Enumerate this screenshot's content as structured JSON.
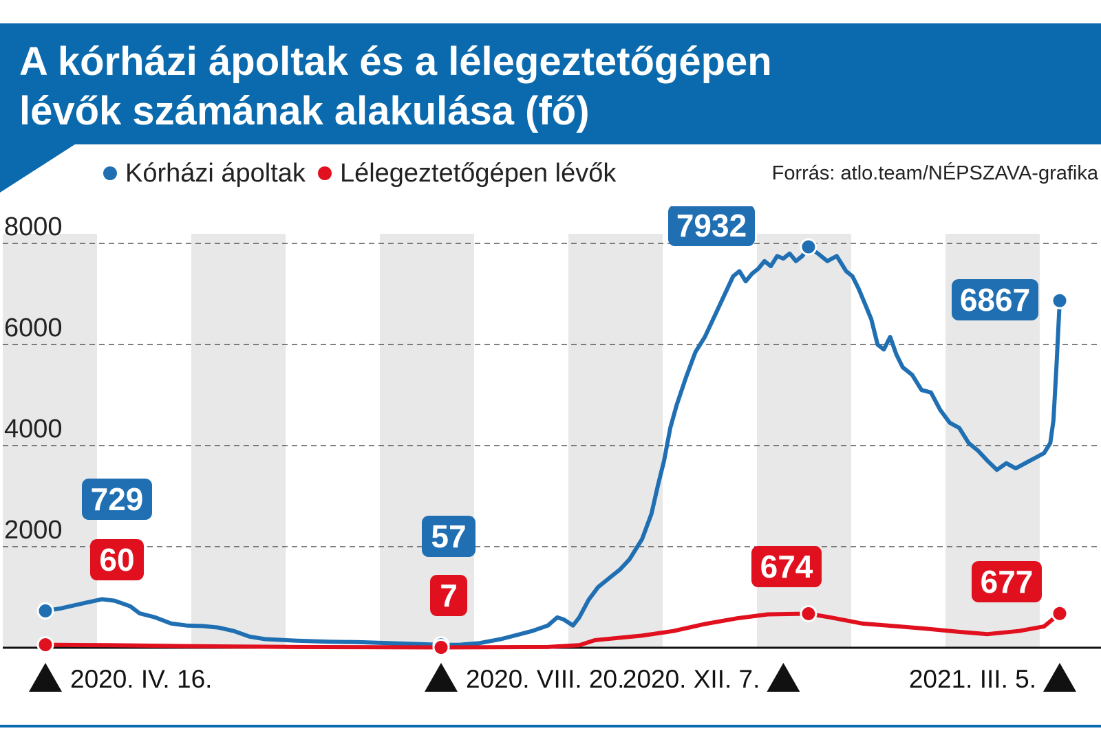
{
  "title": {
    "line1": "A kórházi ápoltak és a lélegeztetőgépen",
    "line2": "lévők számának alakulása (fő)"
  },
  "legend": [
    {
      "label": "Kórházi ápoltak",
      "color": "#1f6fb2"
    },
    {
      "label": "Lélegeztetőgépen lévők",
      "color": "#e0101e"
    }
  ],
  "source": "Forrás: atlo.team/NÉPSZAVA-grafika",
  "colors": {
    "blue": "#1f6fb2",
    "red": "#e0101e",
    "title_bg": "#0a6aad",
    "band": "#e8e8e8"
  },
  "chart_data": {
    "type": "line",
    "x_label_unit": "day index from 2020-04-16 (day 0) to 2021-03-05 (day 323)",
    "xlim": [
      0,
      323
    ],
    "ylim": [
      0,
      8000
    ],
    "yticks": [
      "8000",
      "6000",
      "4000",
      "2000"
    ],
    "ytick_values": [
      8000,
      6000,
      4000,
      2000
    ],
    "grid": "dashed horizontal",
    "legend_position": "top-left",
    "date_labels": [
      {
        "day": 0,
        "label": "2020. IV. 16.",
        "marker_side": "left"
      },
      {
        "day": 126,
        "label": "2020. VIII. 20.",
        "marker_side": "left"
      },
      {
        "day": 235,
        "label": "2020. XII. 7.",
        "marker_side": "right"
      },
      {
        "day": 323,
        "label": "2021. III. 5.",
        "marker_side": "right"
      }
    ],
    "series": [
      {
        "name": "Kórházi ápoltak",
        "color": "#1f6fb2",
        "points": [
          [
            0,
            729
          ],
          [
            5,
            780
          ],
          [
            10,
            850
          ],
          [
            15,
            920
          ],
          [
            18,
            960
          ],
          [
            22,
            930
          ],
          [
            27,
            820
          ],
          [
            30,
            680
          ],
          [
            35,
            600
          ],
          [
            40,
            480
          ],
          [
            45,
            440
          ],
          [
            50,
            430
          ],
          [
            55,
            400
          ],
          [
            60,
            330
          ],
          [
            65,
            220
          ],
          [
            70,
            170
          ],
          [
            80,
            140
          ],
          [
            90,
            120
          ],
          [
            100,
            110
          ],
          [
            110,
            90
          ],
          [
            120,
            70
          ],
          [
            126,
            57
          ],
          [
            132,
            60
          ],
          [
            138,
            90
          ],
          [
            145,
            170
          ],
          [
            150,
            250
          ],
          [
            155,
            330
          ],
          [
            160,
            440
          ],
          [
            163,
            600
          ],
          [
            165,
            560
          ],
          [
            168,
            440
          ],
          [
            170,
            600
          ],
          [
            173,
            950
          ],
          [
            176,
            1200
          ],
          [
            180,
            1400
          ],
          [
            183,
            1550
          ],
          [
            186,
            1750
          ],
          [
            190,
            2150
          ],
          [
            193,
            2650
          ],
          [
            195,
            3200
          ],
          [
            197,
            3700
          ],
          [
            199,
            4350
          ],
          [
            201,
            4800
          ],
          [
            204,
            5350
          ],
          [
            207,
            5850
          ],
          [
            210,
            6150
          ],
          [
            213,
            6550
          ],
          [
            216,
            6950
          ],
          [
            219,
            7350
          ],
          [
            221,
            7450
          ],
          [
            223,
            7250
          ],
          [
            225,
            7400
          ],
          [
            227,
            7500
          ],
          [
            229,
            7650
          ],
          [
            231,
            7550
          ],
          [
            233,
            7750
          ],
          [
            235,
            7700
          ],
          [
            237,
            7800
          ],
          [
            239,
            7650
          ],
          [
            241,
            7750
          ],
          [
            243,
            7932
          ],
          [
            246,
            7800
          ],
          [
            249,
            7650
          ],
          [
            252,
            7750
          ],
          [
            255,
            7450
          ],
          [
            257,
            7350
          ],
          [
            259,
            7100
          ],
          [
            261,
            6800
          ],
          [
            263,
            6500
          ],
          [
            265,
            6000
          ],
          [
            267,
            5900
          ],
          [
            269,
            6150
          ],
          [
            271,
            5800
          ],
          [
            273,
            5550
          ],
          [
            276,
            5400
          ],
          [
            279,
            5100
          ],
          [
            282,
            5050
          ],
          [
            285,
            4700
          ],
          [
            288,
            4450
          ],
          [
            291,
            4350
          ],
          [
            294,
            4050
          ],
          [
            297,
            3900
          ],
          [
            300,
            3700
          ],
          [
            303,
            3520
          ],
          [
            306,
            3650
          ],
          [
            309,
            3550
          ],
          [
            312,
            3650
          ],
          [
            315,
            3750
          ],
          [
            318,
            3850
          ],
          [
            320,
            4050
          ],
          [
            321,
            4500
          ],
          [
            322,
            5600
          ],
          [
            323,
            6867
          ]
        ]
      },
      {
        "name": "Lélegeztetőgépen lévők",
        "color": "#e0101e",
        "points": [
          [
            0,
            60
          ],
          [
            20,
            50
          ],
          [
            40,
            35
          ],
          [
            60,
            25
          ],
          [
            80,
            15
          ],
          [
            100,
            12
          ],
          [
            126,
            7
          ],
          [
            140,
            10
          ],
          [
            160,
            15
          ],
          [
            170,
            50
          ],
          [
            175,
            150
          ],
          [
            180,
            180
          ],
          [
            190,
            240
          ],
          [
            200,
            330
          ],
          [
            210,
            470
          ],
          [
            220,
            580
          ],
          [
            230,
            660
          ],
          [
            243,
            674
          ],
          [
            250,
            600
          ],
          [
            260,
            480
          ],
          [
            270,
            430
          ],
          [
            280,
            380
          ],
          [
            290,
            320
          ],
          [
            300,
            270
          ],
          [
            310,
            330
          ],
          [
            318,
            420
          ],
          [
            323,
            677
          ]
        ]
      }
    ],
    "callouts": [
      {
        "series": 0,
        "day": 0,
        "value": "729"
      },
      {
        "series": 1,
        "day": 0,
        "value": "60"
      },
      {
        "series": 0,
        "day": 126,
        "value": "57"
      },
      {
        "series": 1,
        "day": 126,
        "value": "7"
      },
      {
        "series": 0,
        "day": 243,
        "value": "7932"
      },
      {
        "series": 1,
        "day": 243,
        "value": "674"
      },
      {
        "series": 0,
        "day": 323,
        "value": "6867"
      },
      {
        "series": 1,
        "day": 323,
        "value": "677"
      }
    ]
  }
}
